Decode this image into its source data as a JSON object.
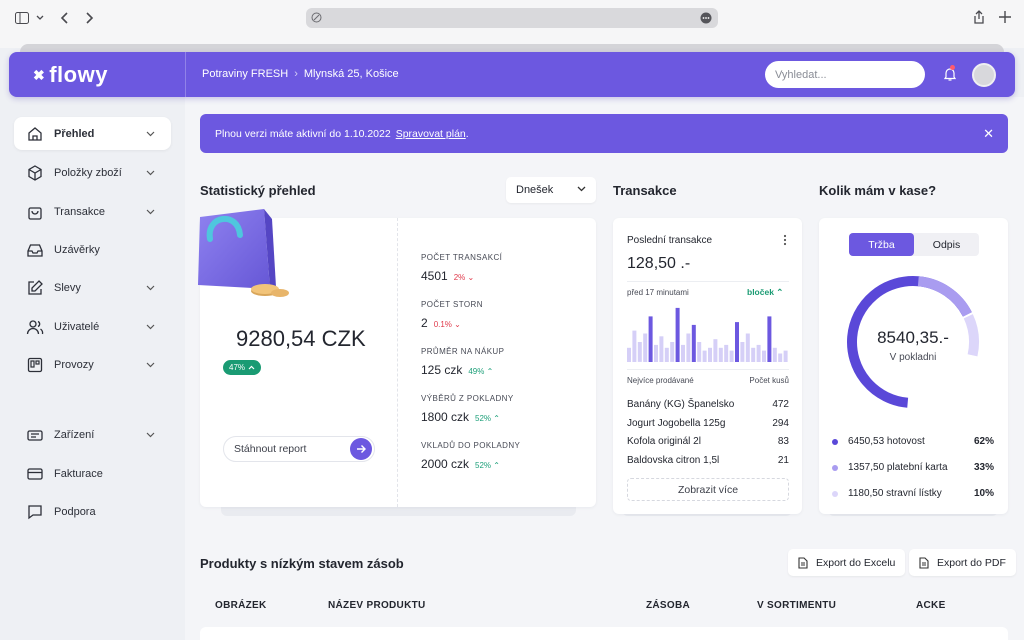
{
  "header": {
    "logo": "flowy",
    "store": "Potraviny FRESH",
    "address": "Mlynská 25, Košice",
    "search_placeholder": "Vyhledat..."
  },
  "sidebar": {
    "items": [
      {
        "label": "Přehled",
        "icon": "home-icon",
        "active": true,
        "chevron": true
      },
      {
        "label": "Položky zboží",
        "icon": "box-icon",
        "chevron": true
      },
      {
        "label": "Transakce",
        "icon": "bag-icon",
        "chevron": true
      },
      {
        "label": "Uzávěrky",
        "icon": "inbox-icon",
        "chevron": false
      },
      {
        "label": "Slevy",
        "icon": "edit-icon",
        "chevron": true
      },
      {
        "label": "Uživatelé",
        "icon": "users-icon",
        "chevron": true
      },
      {
        "label": "Provozy",
        "icon": "store-icon",
        "chevron": true
      },
      {
        "label": "Zařízení",
        "icon": "device-icon",
        "chevron": true
      },
      {
        "label": "Fakturace",
        "icon": "card-icon",
        "chevron": false
      },
      {
        "label": "Podpora",
        "icon": "chat-icon",
        "chevron": false
      }
    ]
  },
  "banner": {
    "text": "Plnou verzi máte aktivní do 1.10.2022",
    "link": "Spravovat plán",
    "tail": "."
  },
  "stats": {
    "title": "Statistický přehled",
    "period": "Dnešek",
    "total": "9280,54 CZK",
    "total_change": "47%",
    "report_label": "Stáhnout report",
    "kpis": [
      {
        "label": "POČET TRANSAKCÍ",
        "value": "4501",
        "change": "2%",
        "dir": "down"
      },
      {
        "label": "POČET STORN",
        "value": "2",
        "change": "0.1%",
        "dir": "down"
      },
      {
        "label": "PRŮMĚR NA NÁKUP",
        "value": "125 czk",
        "change": "49%",
        "dir": "up"
      },
      {
        "label": "VÝBĚRŮ Z POKLADNY",
        "value": "1800 czk",
        "change": "52%",
        "dir": "up"
      },
      {
        "label": "VKLADŮ DO POKLADNY",
        "value": "2000 czk",
        "change": "52%",
        "dir": "up"
      }
    ]
  },
  "transactions": {
    "title": "Transakce",
    "last_label": "Poslední transakce",
    "last_amount": "128,50 .-",
    "time": "před 17 minutami",
    "receipt": "bloček",
    "col_product": "Nejvíce prodávané",
    "col_count": "Počet kusů",
    "rows": [
      {
        "name": "Banány (KG) Španelsko",
        "count": "472"
      },
      {
        "name": "Jogurt Jogobella 125g",
        "count": "294"
      },
      {
        "name": "Kofola originál 2l",
        "count": "83"
      },
      {
        "name": "Baldovska citron 1,5l",
        "count": "21"
      }
    ],
    "show_more": "Zobrazit více",
    "bars": [
      0.25,
      0.55,
      0.35,
      0.5,
      0.8,
      0.3,
      0.45,
      0.25,
      0.35,
      0.95,
      0.3,
      0.5,
      0.65,
      0.35,
      0.2,
      0.25,
      0.4,
      0.25,
      0.3,
      0.2,
      0.7,
      0.35,
      0.5,
      0.25,
      0.3,
      0.2,
      0.8,
      0.25,
      0.15,
      0.2
    ],
    "bar_highlight": [
      4,
      9,
      12,
      20,
      26
    ]
  },
  "cash": {
    "title": "Kolik mám v kase?",
    "tab_revenue": "Tržba",
    "tab_writeoff": "Odpis",
    "center_value": "8540,35.-",
    "center_label": "V pokladni",
    "legend": [
      {
        "label": "6450,53 hotovost",
        "pct": "62%",
        "color": "#5a48d8"
      },
      {
        "label": "1357,50 platební karta",
        "pct": "33%",
        "color": "#a99cf0"
      },
      {
        "label": "1180,50 stravní lístky",
        "pct": "10%",
        "color": "#dcd6fa"
      }
    ]
  },
  "products": {
    "title": "Produkty s nízkým stavem zásob",
    "export_excel": "Export do Excelu",
    "export_pdf": "Export do PDF",
    "columns": [
      "OBRÁZEK",
      "NÁZEV PRODUKTU",
      "ZÁSOBA",
      "V SORTIMENTU",
      "ACKE"
    ]
  }
}
